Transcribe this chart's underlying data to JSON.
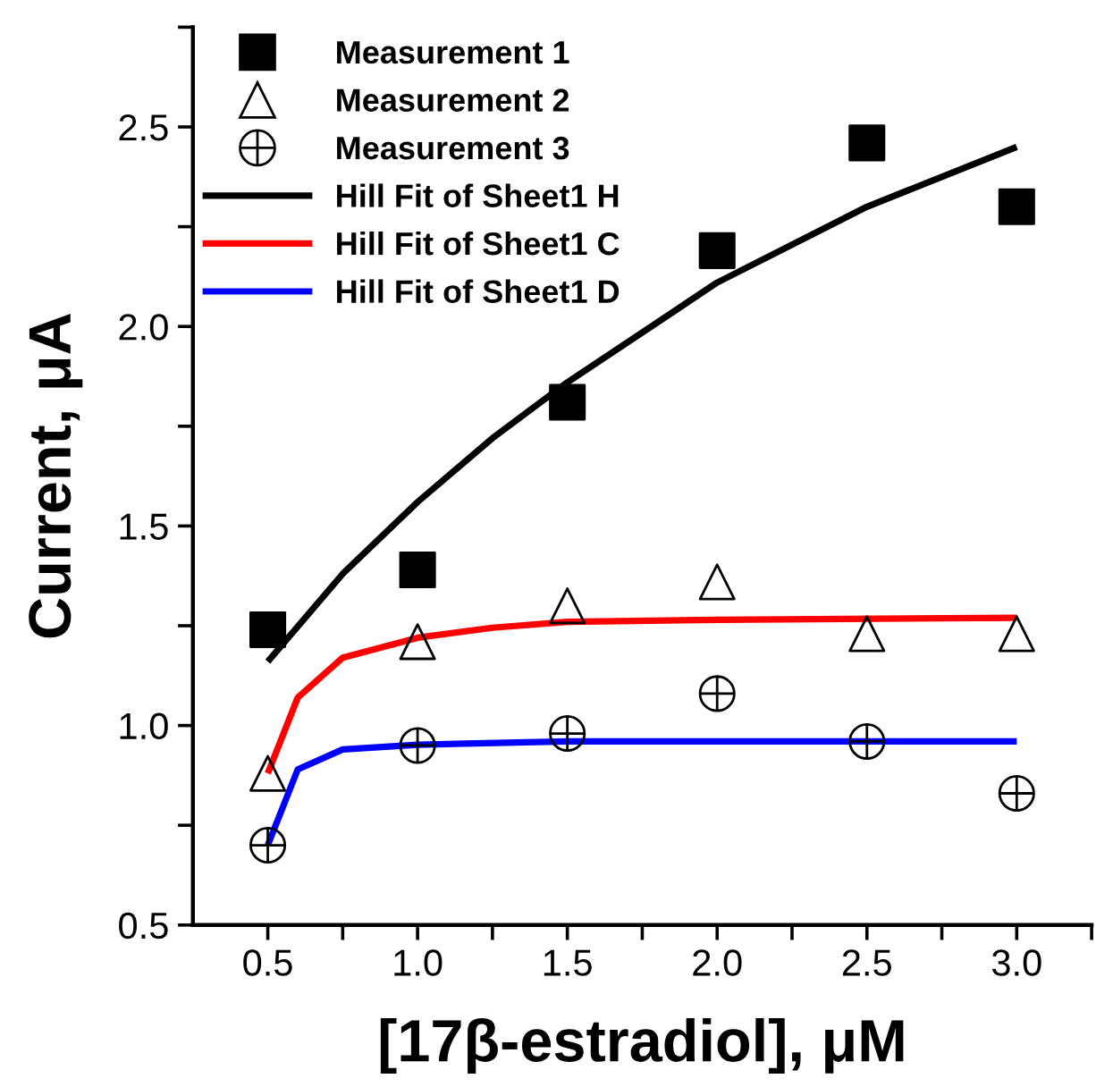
{
  "chart_data": {
    "type": "scatter",
    "xlabel": "[17β-estradiol], μM",
    "ylabel": "Current, μA",
    "xlim": [
      0.25,
      3.25
    ],
    "ylim": [
      0.5,
      2.75
    ],
    "xticks": [
      0.5,
      {
        "value": 0.75,
        "label": null
      },
      {
        "value": 1.0,
        "label": "1.0"
      },
      {
        "value": 1.25,
        "label": null
      },
      1.5,
      {
        "value": 1.75,
        "label": null
      },
      {
        "value": 2.0,
        "label": "2.0"
      },
      {
        "value": 2.25,
        "label": null
      },
      2.5,
      {
        "value": 2.75,
        "label": null
      },
      {
        "value": 3.0,
        "label": "3.0"
      },
      {
        "value": 3.25,
        "label": null
      }
    ],
    "yticks": [
      0.5,
      {
        "value": 0.75,
        "label": null
      },
      {
        "value": 1.0,
        "label": "1.0"
      },
      {
        "value": 1.25,
        "label": null
      },
      1.5,
      {
        "value": 1.75,
        "label": null
      },
      {
        "value": 2.0,
        "label": "2.0"
      },
      {
        "value": 2.25,
        "label": null
      },
      2.5,
      {
        "value": 2.75,
        "label": null
      }
    ],
    "grid": false,
    "legend": "top left",
    "series": [
      {
        "name": "Measurement 1",
        "marker": "square",
        "color": "#000000",
        "x": [
          0.5,
          1.0,
          1.5,
          2.0,
          2.5,
          3.0
        ],
        "values": [
          1.24,
          1.39,
          1.81,
          2.19,
          2.46,
          2.3
        ]
      },
      {
        "name": "Measurement 2",
        "marker": "triangle",
        "color": "#000000",
        "x": [
          0.5,
          1.0,
          1.5,
          2.0,
          2.5,
          3.0
        ],
        "values": [
          0.88,
          1.21,
          1.3,
          1.36,
          1.23,
          1.23
        ]
      },
      {
        "name": "Measurement 3",
        "marker": "cross",
        "color": "#000000",
        "x": [
          0.5,
          1.0,
          1.5,
          2.0,
          2.5,
          3.0
        ],
        "values": [
          0.7,
          0.95,
          0.98,
          1.08,
          0.96,
          0.83
        ]
      },
      {
        "name": "Hill Fit of Sheet1 H",
        "type": "line",
        "marker": "none",
        "line_style": "solid",
        "color": "#000000",
        "x": [
          0.5,
          0.75,
          1.0,
          1.25,
          1.5,
          2.0,
          2.5,
          3.0
        ],
        "values": [
          1.16,
          1.38,
          1.56,
          1.72,
          1.86,
          2.11,
          2.3,
          2.45
        ]
      },
      {
        "name": "Hill Fit of Sheet1 C",
        "type": "line",
        "marker": "none",
        "line_style": "solid",
        "color": "#ff0000",
        "x": [
          0.5,
          0.6,
          0.75,
          1.0,
          1.25,
          1.5,
          2.0,
          3.0
        ],
        "values": [
          0.88,
          1.07,
          1.17,
          1.22,
          1.245,
          1.26,
          1.265,
          1.27
        ]
      },
      {
        "name": "Hill Fit of Sheet1 D",
        "type": "line",
        "marker": "none",
        "line_style": "solid",
        "color": "#0000ff",
        "x": [
          0.5,
          0.6,
          0.75,
          1.0,
          1.5,
          3.0
        ],
        "values": [
          0.7,
          0.89,
          0.94,
          0.952,
          0.96,
          0.96
        ]
      }
    ]
  }
}
